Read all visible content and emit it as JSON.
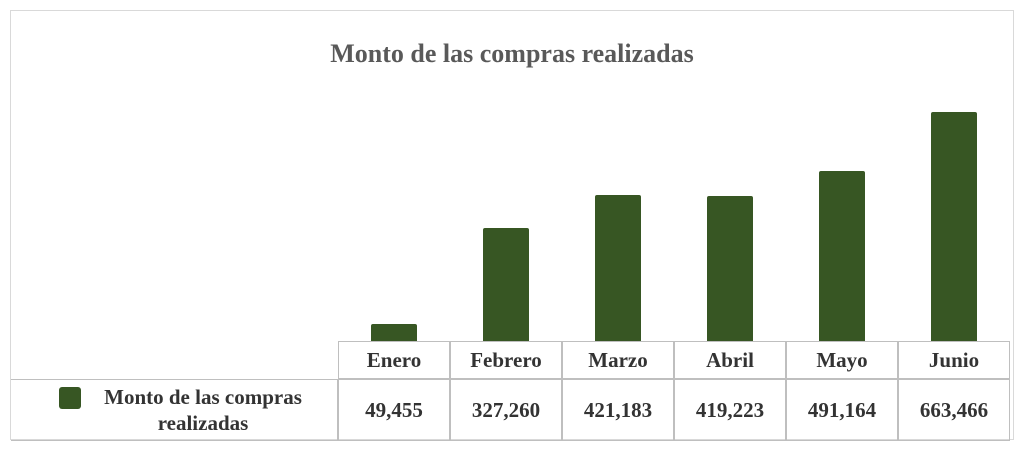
{
  "chart_data": {
    "type": "bar",
    "title": "Monto de las compras realizadas",
    "categories": [
      "Enero",
      "Febrero",
      "Marzo",
      "Abril",
      "Mayo",
      "Junio"
    ],
    "series": [
      {
        "name": "Monto de las compras realizadas",
        "color": "#375623",
        "values": [
          49455,
          327260,
          421183,
          419223,
          491164,
          663466
        ],
        "value_labels": [
          "49,455",
          "327,260",
          "421,183",
          "419,223",
          "491,164",
          "663,466"
        ]
      }
    ],
    "ylim": [
      0,
      700000
    ]
  }
}
